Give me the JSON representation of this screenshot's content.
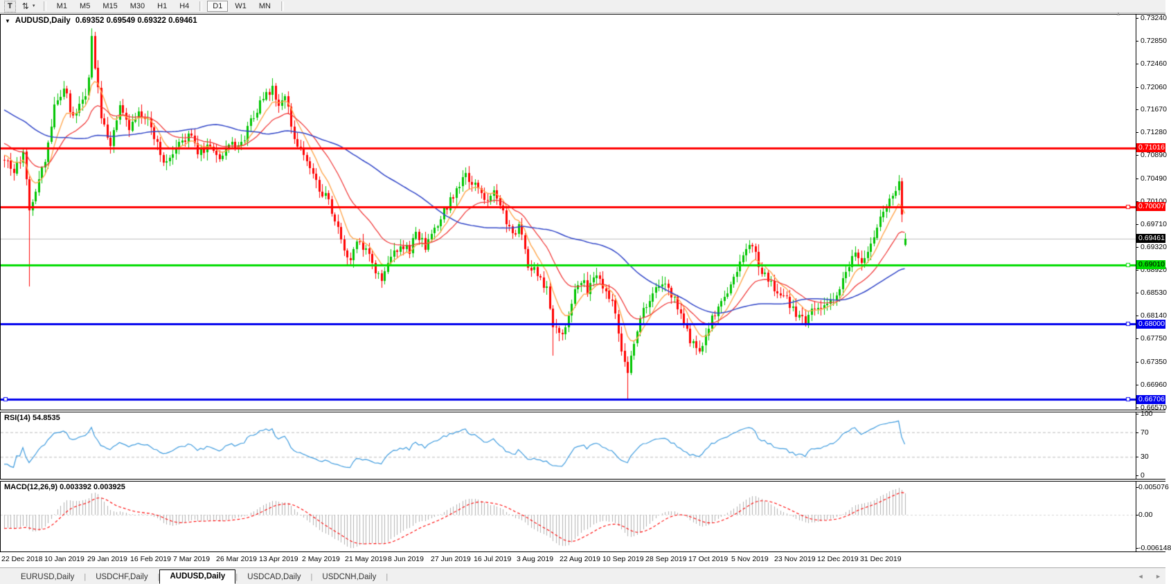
{
  "toolbar": {
    "text_tool": {
      "label": "T"
    },
    "cursor_tool": {
      "glyph": "⇅",
      "dropdown_glyph": "▼"
    },
    "timeframe_groups": [
      [
        "M1",
        "M5",
        "M15",
        "M30",
        "H1",
        "H4"
      ],
      [
        "D1",
        "W1",
        "MN"
      ]
    ],
    "active_timeframe": "D1"
  },
  "chart": {
    "collapse_glyph": "▼",
    "symbol_title": "AUDUSD,Daily",
    "ohlc_display": "0.69352 0.69549 0.69322 0.69461",
    "axis_scroll_glyph": "▲"
  },
  "price_axis": {
    "ticks": [
      "0.73240",
      "0.72850",
      "0.72460",
      "0.72060",
      "0.71670",
      "0.71280",
      "0.70890",
      "0.70490",
      "0.70100",
      "0.69710",
      "0.69320",
      "0.68920",
      "0.68530",
      "0.68140",
      "0.67750",
      "0.67350",
      "0.66960",
      "0.66570"
    ],
    "badges": [
      {
        "value": "0.71016",
        "price": 0.71016,
        "bg": "#FF0000",
        "fg": "#FFFFFF"
      },
      {
        "value": "0.70007",
        "price": 0.70007,
        "bg": "#FF0000",
        "fg": "#FFFFFF"
      },
      {
        "value": "0.69461",
        "price": 0.69461,
        "bg": "#000000",
        "fg": "#FFFFFF"
      },
      {
        "value": "0.69010",
        "price": 0.6901,
        "bg": "#00DC00",
        "fg": "#000000"
      },
      {
        "value": "0.68000",
        "price": 0.68,
        "bg": "#0000EE",
        "fg": "#FFFFFF"
      },
      {
        "value": "0.66706",
        "price": 0.66706,
        "bg": "#0000EE",
        "fg": "#FFFFFF"
      }
    ]
  },
  "indicators": {
    "rsi": {
      "label": "RSI(14)",
      "value": "54.8535",
      "period": 14,
      "line_color": "#3E9BDE",
      "axis_labels": [
        {
          "v": 100,
          "label": "100",
          "dashed": false
        },
        {
          "v": 70,
          "label": "70",
          "dashed": true
        },
        {
          "v": 30,
          "label": "30",
          "dashed": true
        },
        {
          "v": 0,
          "label": "0",
          "dashed": false
        }
      ]
    },
    "macd": {
      "label": "MACD(12,26,9)",
      "values": "0.003392 0.003925",
      "fast": 12,
      "slow": 26,
      "signal": 9,
      "histogram_color": "#B0B0B0",
      "signal_color": "#FF0000",
      "axis_labels": [
        {
          "v": 0.005076,
          "label": "0.005076"
        },
        {
          "v": 0,
          "label": "0.00"
        },
        {
          "v": -0.006148,
          "label": "-0.006148"
        }
      ]
    }
  },
  "date_axis": {
    "labels": [
      "22 Dec 2018",
      "10 Jan 2019",
      "29 Jan 2019",
      "16 Feb 2019",
      "7 Mar 2019",
      "26 Mar 2019",
      "13 Apr 2019",
      "2 May 2019",
      "21 May 2019",
      "8 Jun 2019",
      "27 Jun 2019",
      "16 Jul 2019",
      "3 Aug 2019",
      "22 Aug 2019",
      "10 Sep 2019",
      "28 Sep 2019",
      "17 Oct 2019",
      "5 Nov 2019",
      "23 Nov 2019",
      "12 Dec 2019",
      "31 Dec 2019"
    ],
    "start_x": 2,
    "spacing_px": 62
  },
  "tab_bar": {
    "tabs": [
      "EURUSD,Daily",
      "USDCHF,Daily",
      "AUDUSD,Daily",
      "USDCAD,Daily",
      "USDCNH,Daily"
    ],
    "active_tab": "AUDUSD,Daily",
    "separator_glyph": "|",
    "scroll_left_glyph": "◄",
    "scroll_right_glyph": "►"
  },
  "chart_data": {
    "type": "candlestick",
    "symbol": "AUDUSD",
    "timeframe": "Daily",
    "last_candle": {
      "open": 0.69352,
      "high": 0.69549,
      "low": 0.69322,
      "close": 0.69461
    },
    "ylim": [
      0.6653,
      0.733
    ],
    "candle_count": 290,
    "first_candle_x": 5,
    "candle_spacing_px": 4.5,
    "seed": 11,
    "noise": 0.0016,
    "up_color": "#00C400",
    "down_color": "#FF0000",
    "warmup_keypoints": [
      [
        -60,
        0.725
      ],
      [
        -45,
        0.7235
      ],
      [
        -30,
        0.718
      ],
      [
        -15,
        0.712
      ],
      [
        -5,
        0.7095
      ],
      [
        -1,
        0.7088
      ]
    ],
    "close_path_keypoints": [
      [
        0,
        0.7085
      ],
      [
        3,
        0.706
      ],
      [
        6,
        0.7092
      ],
      [
        7,
        0.704
      ],
      [
        8,
        0.7
      ],
      [
        10,
        0.7025
      ],
      [
        13,
        0.708
      ],
      [
        16,
        0.717
      ],
      [
        19,
        0.7205
      ],
      [
        22,
        0.715
      ],
      [
        25,
        0.7178
      ],
      [
        27,
        0.7215
      ],
      [
        28,
        0.7288
      ],
      [
        29,
        0.7245
      ],
      [
        31,
        0.715
      ],
      [
        34,
        0.711
      ],
      [
        37,
        0.7168
      ],
      [
        40,
        0.7132
      ],
      [
        43,
        0.716
      ],
      [
        47,
        0.714
      ],
      [
        50,
        0.7092
      ],
      [
        52,
        0.7072
      ],
      [
        56,
        0.7105
      ],
      [
        59,
        0.7128
      ],
      [
        62,
        0.7092
      ],
      [
        66,
        0.7108
      ],
      [
        69,
        0.7082
      ],
      [
        72,
        0.7112
      ],
      [
        76,
        0.7105
      ],
      [
        79,
        0.715
      ],
      [
        82,
        0.7178
      ],
      [
        86,
        0.7202
      ],
      [
        88,
        0.7172
      ],
      [
        90,
        0.7188
      ],
      [
        93,
        0.712
      ],
      [
        97,
        0.7078
      ],
      [
        100,
        0.7042
      ],
      [
        103,
        0.7018
      ],
      [
        106,
        0.6982
      ],
      [
        108,
        0.6938
      ],
      [
        111,
        0.6905
      ],
      [
        113,
        0.6942
      ],
      [
        116,
        0.6922
      ],
      [
        119,
        0.6892
      ],
      [
        121,
        0.6875
      ],
      [
        124,
        0.6912
      ],
      [
        127,
        0.6938
      ],
      [
        130,
        0.6922
      ],
      [
        132,
        0.6962
      ],
      [
        135,
        0.6928
      ],
      [
        139,
        0.6968
      ],
      [
        142,
        0.7002
      ],
      [
        145,
        0.7032
      ],
      [
        148,
        0.7052
      ],
      [
        151,
        0.7036
      ],
      [
        154,
        0.7012
      ],
      [
        157,
        0.7032
      ],
      [
        160,
        0.6992
      ],
      [
        163,
        0.6948
      ],
      [
        165,
        0.6968
      ],
      [
        168,
        0.6902
      ],
      [
        171,
        0.6888
      ],
      [
        174,
        0.6858
      ],
      [
        176,
        0.6802
      ],
      [
        179,
        0.6782
      ],
      [
        182,
        0.6842
      ],
      [
        185,
        0.6878
      ],
      [
        187,
        0.6858
      ],
      [
        190,
        0.6882
      ],
      [
        193,
        0.6862
      ],
      [
        196,
        0.6822
      ],
      [
        198,
        0.6758
      ],
      [
        200,
        0.6722
      ],
      [
        203,
        0.6792
      ],
      [
        205,
        0.6822
      ],
      [
        209,
        0.6858
      ],
      [
        212,
        0.6872
      ],
      [
        214,
        0.6848
      ],
      [
        217,
        0.6822
      ],
      [
        220,
        0.6772
      ],
      [
        223,
        0.6752
      ],
      [
        225,
        0.6788
      ],
      [
        229,
        0.6828
      ],
      [
        232,
        0.6852
      ],
      [
        234,
        0.6882
      ],
      [
        237,
        0.6922
      ],
      [
        240,
        0.6932
      ],
      [
        242,
        0.6902
      ],
      [
        245,
        0.6872
      ],
      [
        248,
        0.6856
      ],
      [
        251,
        0.6842
      ],
      [
        254,
        0.6818
      ],
      [
        257,
        0.6802
      ],
      [
        259,
        0.6832
      ],
      [
        262,
        0.6818
      ],
      [
        265,
        0.6842
      ],
      [
        268,
        0.6858
      ],
      [
        270,
        0.6892
      ],
      [
        273,
        0.6922
      ],
      [
        276,
        0.6908
      ],
      [
        279,
        0.6948
      ],
      [
        281,
        0.6978
      ],
      [
        284,
        0.7012
      ],
      [
        287,
        0.7042
      ],
      [
        288,
        0.6992
      ],
      [
        289,
        0.69461
      ]
    ],
    "wick_overrides": [
      {
        "i": 8,
        "low": 0.6865
      },
      {
        "i": 28,
        "high": 0.7306
      },
      {
        "i": 121,
        "low": 0.6862
      },
      {
        "i": 148,
        "high": 0.7068
      },
      {
        "i": 176,
        "low": 0.6745
      },
      {
        "i": 200,
        "low": 0.6672
      },
      {
        "i": 287,
        "high": 0.7054
      }
    ],
    "moving_averages": [
      {
        "name": "fast",
        "period": 8,
        "method": "ema",
        "color": "#FFA64D",
        "width": 1.4
      },
      {
        "name": "mid",
        "period": 21,
        "method": "ema",
        "color": "#F03030",
        "width": 1.2
      },
      {
        "name": "slow",
        "period": 55,
        "method": "sma",
        "color": "#3146C8",
        "width": 1.5
      }
    ],
    "horizontal_lines": [
      {
        "price": 0.71016,
        "color": "#FF0000",
        "width": 3,
        "handles": []
      },
      {
        "price": 0.70007,
        "color": "#FF0000",
        "width": 3,
        "handles": [
          "right"
        ]
      },
      {
        "price": 0.6901,
        "color": "#00DC00",
        "width": 3,
        "handles": [
          "right"
        ]
      },
      {
        "price": 0.68,
        "color": "#0000EE",
        "width": 3,
        "handles": [
          "right"
        ]
      },
      {
        "price": 0.66706,
        "color": "#0000EE",
        "width": 3,
        "handles": [
          "left",
          "right"
        ]
      }
    ],
    "current_price_line": {
      "price": 0.69461,
      "color": "#BFBFBF",
      "width": 1
    }
  }
}
